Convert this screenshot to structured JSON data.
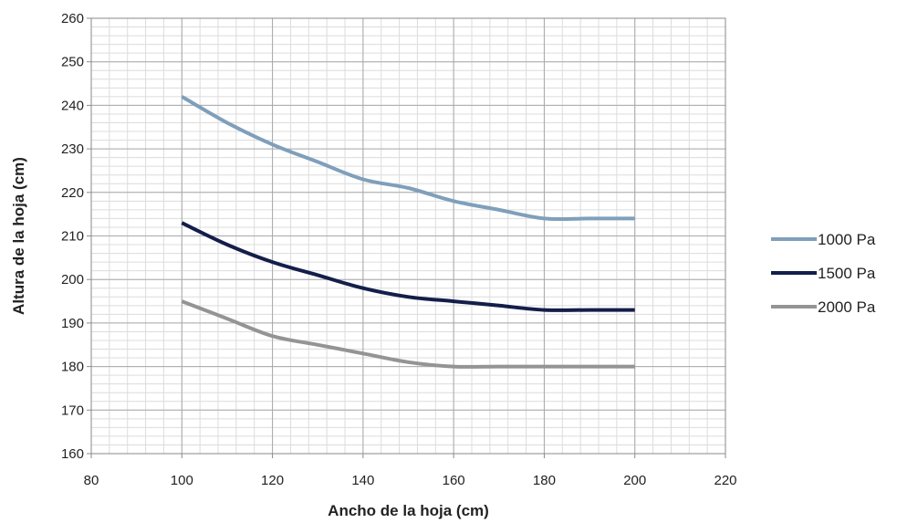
{
  "chart_data": {
    "type": "line",
    "xlabel": "Ancho de la hoja (cm)",
    "ylabel": "Altura de la hoja (cm)",
    "xlim": [
      80,
      220
    ],
    "ylim": [
      160,
      260
    ],
    "xticks": [
      "80",
      "100",
      "120",
      "140",
      "160",
      "180",
      "200",
      "220"
    ],
    "yticks": [
      "160",
      "170",
      "180",
      "190",
      "200",
      "210",
      "220",
      "230",
      "240",
      "250",
      "260"
    ],
    "x_major_step": 20,
    "y_major_step": 10,
    "grid": true,
    "minor_grid": true,
    "legend_position": "right",
    "series": [
      {
        "name": "1000 Pa",
        "color": "#7f9fba",
        "x": [
          100,
          110,
          120,
          130,
          140,
          150,
          160,
          170,
          180,
          190,
          200
        ],
        "y": [
          242,
          236,
          231,
          227,
          223,
          221,
          218,
          216,
          214,
          214,
          214
        ]
      },
      {
        "name": "1500 Pa",
        "color": "#141e4a",
        "x": [
          100,
          110,
          120,
          130,
          140,
          150,
          160,
          170,
          180,
          190,
          200
        ],
        "y": [
          213,
          208,
          204,
          201,
          198,
          196,
          195,
          194,
          193,
          193,
          193
        ]
      },
      {
        "name": "2000 Pa",
        "color": "#949494",
        "x": [
          100,
          110,
          120,
          130,
          140,
          150,
          160,
          170,
          180,
          190,
          200
        ],
        "y": [
          195,
          191,
          187,
          185,
          183,
          181,
          180,
          180,
          180,
          180,
          180
        ]
      }
    ]
  }
}
